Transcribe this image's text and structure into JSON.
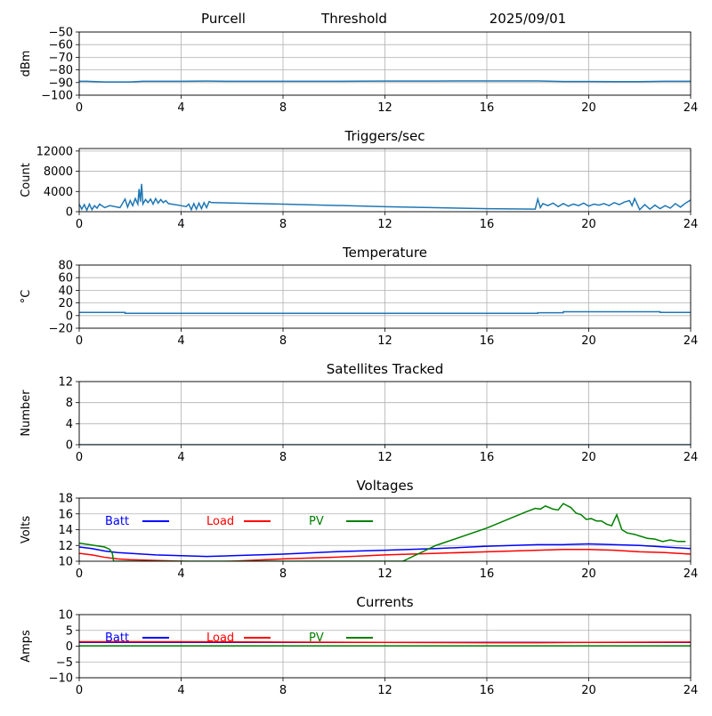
{
  "header": {
    "station": "Purcell",
    "mode": "Threshold",
    "date": "2025/09/01"
  },
  "chart_data": [
    {
      "type": "line",
      "title": "",
      "ylabel": "dBm",
      "xlabel": "",
      "xlim": [
        0,
        24
      ],
      "ylim": [
        -100,
        -50
      ],
      "xticks": [
        0,
        4,
        8,
        12,
        16,
        20,
        24
      ],
      "yticks": [
        -100,
        -90,
        -80,
        -70,
        -60,
        -50
      ],
      "ytick_labels": [
        "−100",
        "−90",
        "−80",
        "−70",
        "−60",
        "−50"
      ],
      "grid": true,
      "series": [
        {
          "color": "#1f77b4",
          "x": [
            0,
            0.3,
            1.0,
            2.0,
            2.5,
            3.0,
            4.0,
            5.0,
            6.0,
            8.0,
            10.0,
            12.0,
            14.0,
            16.0,
            18.0,
            19.0,
            20.0,
            21.0,
            22.0,
            23.0,
            24.0
          ],
          "y": [
            -89,
            -89,
            -89.5,
            -89.5,
            -89,
            -89,
            -89,
            -88.8,
            -89,
            -89,
            -89,
            -88.8,
            -88.8,
            -88.7,
            -88.7,
            -89.2,
            -89.2,
            -89.3,
            -89.3,
            -89,
            -89
          ]
        }
      ]
    },
    {
      "type": "line",
      "title": "Triggers/sec",
      "ylabel": "Count",
      "xlabel": "",
      "xlim": [
        0,
        24
      ],
      "ylim": [
        0,
        12500
      ],
      "xticks": [
        0,
        4,
        8,
        12,
        16,
        20,
        24
      ],
      "yticks": [
        0,
        4000,
        8000,
        12000
      ],
      "ytick_labels": [
        "0",
        "4000",
        "8000",
        "12000"
      ],
      "grid": true,
      "series": [
        {
          "color": "#1f77b4",
          "x": [
            0,
            0.1,
            0.2,
            0.3,
            0.4,
            0.5,
            0.6,
            0.7,
            0.8,
            1.0,
            1.2,
            1.5,
            1.6,
            1.8,
            1.9,
            2.0,
            2.1,
            2.2,
            2.3,
            2.35,
            2.4,
            2.45,
            2.5,
            2.6,
            2.7,
            2.8,
            2.9,
            3.0,
            3.1,
            3.2,
            3.3,
            3.4,
            3.5,
            4.0,
            4.2,
            4.3,
            4.4,
            4.5,
            4.6,
            4.7,
            4.8,
            4.9,
            5.0,
            5.1,
            5.2,
            8.0,
            12.0,
            16.0,
            17.9,
            18.0,
            18.1,
            18.2,
            18.4,
            18.6,
            18.8,
            19.0,
            19.2,
            19.4,
            19.6,
            19.8,
            20.0,
            20.2,
            20.4,
            20.6,
            20.8,
            21.0,
            21.2,
            21.4,
            21.6,
            21.7,
            21.8,
            22.0,
            22.2,
            22.4,
            22.6,
            22.8,
            23.0,
            23.2,
            23.4,
            23.6,
            23.8,
            24.0
          ],
          "y": [
            1500,
            500,
            1400,
            300,
            1500,
            400,
            1200,
            700,
            1500,
            800,
            1200,
            900,
            800,
            2500,
            900,
            2200,
            1200,
            2600,
            1500,
            4500,
            2000,
            5500,
            1500,
            2400,
            1800,
            2500,
            1500,
            2600,
            1700,
            2400,
            1800,
            2200,
            1600,
            1200,
            1000,
            1500,
            400,
            1600,
            500,
            1700,
            600,
            1800,
            800,
            2000,
            1800,
            1500,
            1000,
            600,
            500,
            2500,
            800,
            1600,
            1200,
            1700,
            1000,
            1600,
            1100,
            1500,
            1200,
            1700,
            1100,
            1500,
            1300,
            1600,
            1200,
            1800,
            1400,
            1900,
            2200,
            1200,
            2600,
            400,
            1400,
            500,
            1300,
            600,
            1200,
            700,
            1600,
            900,
            1700,
            2300
          ]
        }
      ]
    },
    {
      "type": "line",
      "title": "Temperature",
      "ylabel": "°C",
      "xlabel": "",
      "xlim": [
        0,
        24
      ],
      "ylim": [
        -20,
        80
      ],
      "xticks": [
        0,
        4,
        8,
        12,
        16,
        20,
        24
      ],
      "yticks": [
        -20,
        0,
        20,
        40,
        60,
        80
      ],
      "ytick_labels": [
        "−20",
        "0",
        "20",
        "40",
        "60",
        "80"
      ],
      "grid": true,
      "series": [
        {
          "color": "#1f77b4",
          "x": [
            0,
            1.8,
            1.8,
            18.0,
            18.0,
            19.0,
            19.0,
            22.8,
            22.8,
            24.0
          ],
          "y": [
            5,
            5,
            3.5,
            3.5,
            4.5,
            4.5,
            6,
            6,
            5,
            5
          ]
        }
      ]
    },
    {
      "type": "line",
      "title": "Satellites Tracked",
      "ylabel": "Number",
      "xlabel": "",
      "xlim": [
        0,
        24
      ],
      "ylim": [
        0,
        12
      ],
      "xticks": [
        0,
        4,
        8,
        12,
        16,
        20,
        24
      ],
      "yticks": [
        0,
        4,
        8,
        12
      ],
      "ytick_labels": [
        "0",
        "4",
        "8",
        "12"
      ],
      "grid": true,
      "series": [
        {
          "color": "#1f77b4",
          "x": [
            0,
            24
          ],
          "y": [
            0,
            0
          ]
        }
      ]
    },
    {
      "type": "line",
      "title": "Voltages",
      "ylabel": "Volts",
      "xlabel": "",
      "xlim": [
        0,
        24
      ],
      "ylim": [
        10,
        18
      ],
      "xticks": [
        0,
        4,
        8,
        12,
        16,
        20,
        24
      ],
      "yticks": [
        10,
        12,
        14,
        16,
        18
      ],
      "ytick_labels": [
        "10",
        "12",
        "14",
        "16",
        "18"
      ],
      "grid": true,
      "legend": "top-left",
      "series": [
        {
          "name": "Batt",
          "color": "#0000ff",
          "x": [
            0,
            0.5,
            1,
            1.5,
            2,
            3,
            4,
            5,
            6,
            8,
            10,
            12,
            14,
            16,
            18,
            18.7,
            19,
            20,
            21,
            22,
            23,
            24
          ],
          "y": [
            11.8,
            11.6,
            11.3,
            11.1,
            11.0,
            10.8,
            10.7,
            10.6,
            10.7,
            10.9,
            11.2,
            11.4,
            11.6,
            11.9,
            12.1,
            12.1,
            12.1,
            12.2,
            12.1,
            12.0,
            11.8,
            11.6
          ]
        },
        {
          "name": "Load",
          "color": "#ff0000",
          "x": [
            0,
            0.5,
            1,
            1.5,
            2,
            3,
            4,
            5,
            6,
            8,
            10,
            12,
            14,
            16,
            18,
            19,
            20,
            21,
            22,
            23,
            24
          ],
          "y": [
            11.0,
            10.8,
            10.5,
            10.3,
            10.2,
            10.1,
            10.0,
            9.9,
            10.0,
            10.3,
            10.5,
            10.8,
            11.0,
            11.2,
            11.4,
            11.5,
            11.5,
            11.4,
            11.2,
            11.1,
            10.9
          ]
        },
        {
          "name": "PV",
          "color": "#008000",
          "x": [
            0,
            0.4,
            0.8,
            1.0,
            1.2,
            1.3,
            1.35,
            12.7,
            14.0,
            16.0,
            17.5,
            17.9,
            18.1,
            18.3,
            18.6,
            18.8,
            19.0,
            19.3,
            19.5,
            19.7,
            19.9,
            20.1,
            20.3,
            20.5,
            20.7,
            20.9,
            21.1,
            21.3,
            21.5,
            21.8,
            22.0,
            22.3,
            22.6,
            22.9,
            23.2,
            23.5,
            23.8
          ],
          "y": [
            12.3,
            12.1,
            11.9,
            11.8,
            11.5,
            11.0,
            10.0,
            10.0,
            12.0,
            14.2,
            16.2,
            16.7,
            16.6,
            17.0,
            16.6,
            16.5,
            17.3,
            16.8,
            16.1,
            15.9,
            15.3,
            15.4,
            15.1,
            15.1,
            14.7,
            14.5,
            15.9,
            14.0,
            13.6,
            13.4,
            13.2,
            12.9,
            12.8,
            12.5,
            12.7,
            12.5,
            12.5
          ]
        }
      ]
    },
    {
      "type": "line",
      "title": "Currents",
      "ylabel": "Amps",
      "xlabel": "",
      "xlim": [
        0,
        24
      ],
      "ylim": [
        -10,
        10
      ],
      "xticks": [
        0,
        4,
        8,
        12,
        16,
        20,
        24
      ],
      "yticks": [
        -10,
        -5,
        0,
        5,
        10
      ],
      "ytick_labels": [
        "−10",
        "−5",
        "0",
        "5",
        "10"
      ],
      "grid": true,
      "legend": "top-left",
      "series": [
        {
          "name": "Batt",
          "color": "#0000ff",
          "x": [
            0,
            24
          ],
          "y": [
            1.2,
            1.2
          ]
        },
        {
          "name": "Load",
          "color": "#ff0000",
          "x": [
            0,
            4,
            8,
            12,
            16,
            18,
            20,
            24
          ],
          "y": [
            1.4,
            1.4,
            1.3,
            1.2,
            1.1,
            1.1,
            1.2,
            1.3
          ]
        },
        {
          "name": "PV",
          "color": "#008000",
          "x": [
            0,
            24
          ],
          "y": [
            0.1,
            0.1
          ]
        }
      ]
    }
  ]
}
